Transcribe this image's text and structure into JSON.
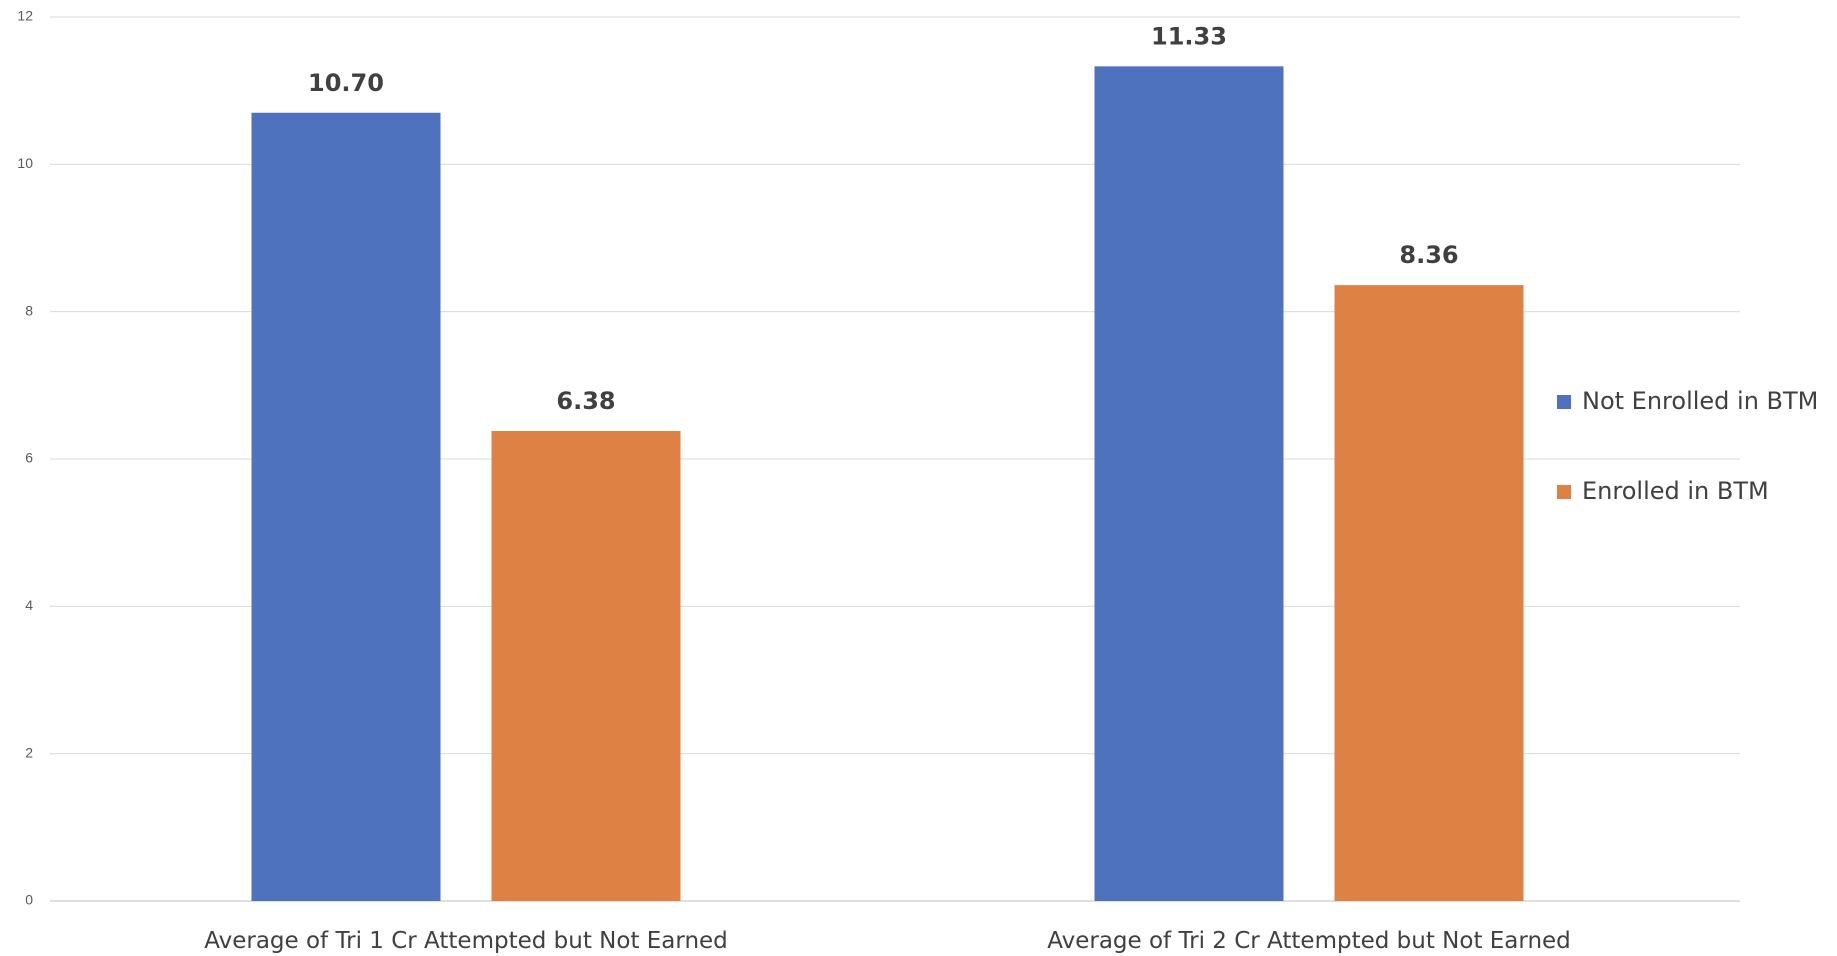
{
  "chart_data": {
    "type": "bar",
    "title": "",
    "xlabel": "",
    "ylabel": "",
    "categories": [
      "Average of Tri 1 Cr Attempted but Not Earned",
      "Average of Tri 2 Cr Attempted but Not Earned"
    ],
    "series": [
      {
        "name": "Not Enrolled in BTM",
        "color": "#4f72be",
        "values": [
          10.7,
          11.33
        ],
        "labels": [
          "10.70",
          "11.33"
        ]
      },
      {
        "name": "Enrolled in BTM",
        "color": "#dd8244",
        "values": [
          6.38,
          8.36
        ],
        "labels": [
          "6.38",
          "8.36"
        ]
      }
    ],
    "ylim": [
      0,
      12
    ],
    "yticks": [
      "0",
      "2",
      "4",
      "6",
      "8",
      "10",
      "12"
    ],
    "grid": true,
    "legend_position": "right"
  }
}
